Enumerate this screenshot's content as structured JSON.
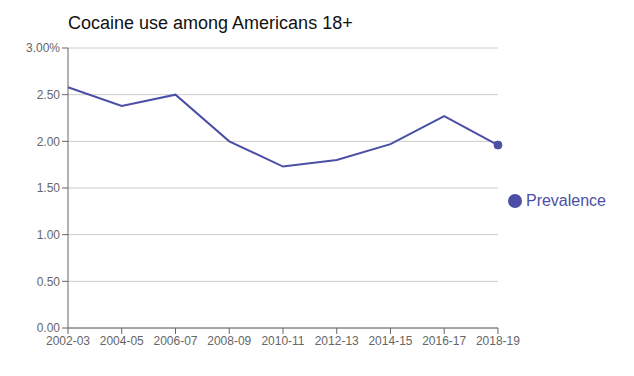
{
  "chart_data": {
    "type": "line",
    "title": "Cocaine use among Americans 18+",
    "categories": [
      "2002-03",
      "2004-05",
      "2006-07",
      "2008-09",
      "2010-11",
      "2012-13",
      "2014-15",
      "2016-17",
      "2018-19"
    ],
    "series": [
      {
        "name": "Prevalence",
        "color": "#4b4fa6",
        "values": [
          2.58,
          2.38,
          2.5,
          2.0,
          1.73,
          1.8,
          1.97,
          2.27,
          1.96
        ]
      }
    ],
    "ylim": [
      0.0,
      3.0
    ],
    "yticks": [
      {
        "value": 0.0,
        "label": "0.00"
      },
      {
        "value": 0.5,
        "label": "0.50"
      },
      {
        "value": 1.0,
        "label": "1.00"
      },
      {
        "value": 1.5,
        "label": "1.50"
      },
      {
        "value": 2.0,
        "label": "2.00"
      },
      {
        "value": 2.5,
        "label": "2.50"
      },
      {
        "value": 3.0,
        "label": "3.00%"
      }
    ],
    "grid": true,
    "legend": "right",
    "marker": "circle"
  }
}
